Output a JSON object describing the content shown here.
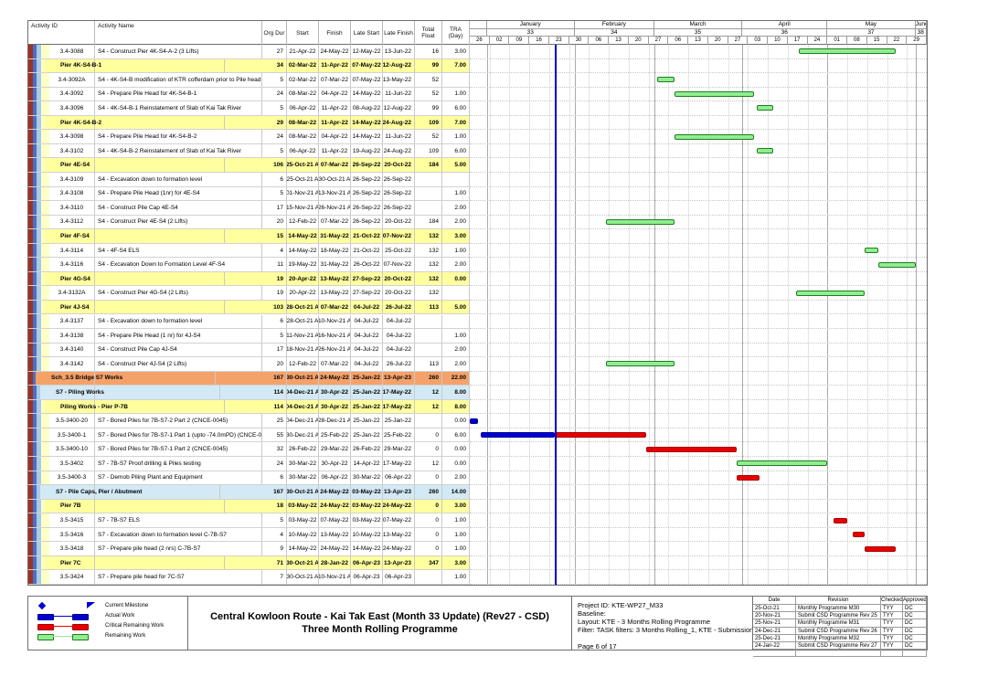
{
  "scale": {
    "start": "2021-12-26",
    "end": "2022-06-05",
    "data_date": "2022-01-25"
  },
  "timeline": {
    "months": [
      {
        "label": "",
        "num": "",
        "from": "2021-12-26",
        "to": "2022-01-01"
      },
      {
        "label": "January",
        "num": "33",
        "from": "2022-01-01",
        "to": "2022-02-01"
      },
      {
        "label": "February",
        "num": "34",
        "from": "2022-02-01",
        "to": "2022-03-01"
      },
      {
        "label": "March",
        "num": "35",
        "from": "2022-03-01",
        "to": "2022-04-01"
      },
      {
        "label": "April",
        "num": "36",
        "from": "2022-04-01",
        "to": "2022-05-01"
      },
      {
        "label": "May",
        "num": "37",
        "from": "2022-05-01",
        "to": "2022-06-01"
      },
      {
        "label": "June",
        "num": "38",
        "from": "2022-06-01",
        "to": "2022-06-05"
      }
    ],
    "weeks": [
      "26",
      "02",
      "09",
      "16",
      "23",
      "30",
      "06",
      "13",
      "20",
      "27",
      "06",
      "13",
      "20",
      "27",
      "03",
      "10",
      "17",
      "24",
      "01",
      "08",
      "15",
      "22",
      "29"
    ]
  },
  "columns": {
    "id": "Activity ID",
    "name": "Activity Name",
    "dur": "Org Dur",
    "start": "Start",
    "finish": "Finish",
    "late_start": "Late Start",
    "late_finish": "Late Finish",
    "total_float": "Total Float",
    "tra": "TRA (Day)"
  },
  "colors": {
    "band_yellow": "#FFFF9E",
    "band_orange": "#F4A26A",
    "band_blue": "#D3E9F5",
    "bar_remaining": "#90EE90",
    "bar_remaining_border": "#1E7D1E",
    "bar_critical": "#E60000",
    "bar_critical_border": "#A80000",
    "bar_actual": "#0000D0",
    "bar_actual_border": "#000090",
    "data_date_line": "#0000C0",
    "stripe_1": "#9B3324",
    "stripe_2": "#4A6FC4",
    "stripe_3": "#A9CBE8",
    "stripe_4": "#FFFFC8"
  },
  "rows": [
    {
      "type": "task",
      "id": "3.4-3088",
      "name": "S4 - Construct Pier 4K-S4-A-2 (3 Lifts)",
      "dur": "27",
      "start": "21-Apr-22",
      "finish": "24-May-22",
      "late_start": "12-May-22",
      "late_finish": "13-Jun-22",
      "total_float": "16",
      "tra": "3.00",
      "bars": [
        {
          "kind": "remaining",
          "from": "2022-04-21",
          "to": "2022-05-24"
        }
      ]
    },
    {
      "type": "band3",
      "id": "",
      "name": "Pier 4K-S4-B-1",
      "dur": "34",
      "start": "02-Mar-22",
      "finish": "11-Apr-22",
      "late_start": "07-May-22",
      "late_finish": "12-Aug-22",
      "total_float": "99",
      "tra": "7.00",
      "bars": []
    },
    {
      "type": "task",
      "id": "3.4-3092A",
      "name": "S4 - 4K-S4-B  modification of KTR cofferdam prior to Pile head trimming",
      "dur": "5",
      "start": "02-Mar-22",
      "finish": "07-Mar-22",
      "late_start": "07-May-22",
      "late_finish": "13-May-22",
      "total_float": "52",
      "tra": "",
      "bars": [
        {
          "kind": "remaining",
          "from": "2022-03-02",
          "to": "2022-03-07"
        }
      ]
    },
    {
      "type": "task",
      "id": "3.4-3092",
      "name": "S4 - Prepare Pile Head for 4K-S4-B-1",
      "dur": "24",
      "start": "08-Mar-22",
      "finish": "04-Apr-22",
      "late_start": "14-May-22",
      "late_finish": "11-Jun-22",
      "total_float": "52",
      "tra": "1.00",
      "bars": [
        {
          "kind": "remaining",
          "from": "2022-03-08",
          "to": "2022-04-04"
        }
      ]
    },
    {
      "type": "task",
      "id": "3.4-3096",
      "name": "S4 - 4K-S4-B-1 Reinstatement of Slab of Kai Tak River",
      "dur": "5",
      "start": "06-Apr-22",
      "finish": "11-Apr-22",
      "late_start": "08-Aug-22",
      "late_finish": "12-Aug-22",
      "total_float": "99",
      "tra": "6.00",
      "bars": [
        {
          "kind": "remaining",
          "from": "2022-04-06",
          "to": "2022-04-11"
        }
      ]
    },
    {
      "type": "band3",
      "id": "",
      "name": "Pier 4K-S4-B-2",
      "dur": "29",
      "start": "08-Mar-22",
      "finish": "11-Apr-22",
      "late_start": "14-May-22",
      "late_finish": "24-Aug-22",
      "total_float": "109",
      "tra": "7.00",
      "bars": []
    },
    {
      "type": "task",
      "id": "3.4-3098",
      "name": "S4 - Prepare Pile Head for 4K-S4-B-2",
      "dur": "24",
      "start": "08-Mar-22",
      "finish": "04-Apr-22",
      "late_start": "14-May-22",
      "late_finish": "11-Jun-22",
      "total_float": "52",
      "tra": "1.00",
      "bars": [
        {
          "kind": "remaining",
          "from": "2022-03-08",
          "to": "2022-04-04"
        }
      ]
    },
    {
      "type": "task",
      "id": "3.4-3102",
      "name": "S4 - 4K-S4-B-2 Reinstatement of Slab of Kai Tak River",
      "dur": "5",
      "start": "06-Apr-22",
      "finish": "11-Apr-22",
      "late_start": "19-Aug-22",
      "late_finish": "24-Aug-22",
      "total_float": "109",
      "tra": "6.00",
      "bars": [
        {
          "kind": "remaining",
          "from": "2022-04-06",
          "to": "2022-04-11"
        }
      ]
    },
    {
      "type": "band3",
      "id": "",
      "name": "Pier 4E-S4",
      "dur": "106",
      "start": "25-Oct-21 A",
      "finish": "07-Mar-22",
      "late_start": "26-Sep-22",
      "late_finish": "20-Oct-22",
      "total_float": "184",
      "tra": "5.00",
      "bars": []
    },
    {
      "type": "task",
      "id": "3.4-3109",
      "name": "S4 - Excavation down to formation level",
      "dur": "6",
      "start": "25-Oct-21 A",
      "finish": "30-Oct-21 A",
      "late_start": "26-Sep-22",
      "late_finish": "26-Sep-22",
      "total_float": "",
      "tra": "",
      "bars": []
    },
    {
      "type": "task",
      "id": "3.4-3108",
      "name": "S4 - Prepare Pile Head (1nr) for 4E-S4",
      "dur": "5",
      "start": "01-Nov-21 A",
      "finish": "13-Nov-21 A",
      "late_start": "26-Sep-22",
      "late_finish": "26-Sep-22",
      "total_float": "",
      "tra": "1.00",
      "bars": []
    },
    {
      "type": "task",
      "id": "3.4-3110",
      "name": "S4 - Construct Pile Cap 4E-S4",
      "dur": "17",
      "start": "15-Nov-21 A",
      "finish": "26-Nov-21 A",
      "late_start": "26-Sep-22",
      "late_finish": "26-Sep-22",
      "total_float": "",
      "tra": "2.00",
      "bars": []
    },
    {
      "type": "task",
      "id": "3.4-3112",
      "name": "S4 - Construct Pier 4E-S4 (2 Lifts)",
      "dur": "20",
      "start": "12-Feb-22",
      "finish": "07-Mar-22",
      "late_start": "26-Sep-22",
      "late_finish": "20-Oct-22",
      "total_float": "184",
      "tra": "2.00",
      "bars": [
        {
          "kind": "remaining",
          "from": "2022-02-12",
          "to": "2022-03-07"
        }
      ]
    },
    {
      "type": "band3",
      "id": "",
      "name": "Pier 4F-S4",
      "dur": "15",
      "start": "14-May-22",
      "finish": "31-May-22",
      "late_start": "21-Oct-22",
      "late_finish": "07-Nov-22",
      "total_float": "132",
      "tra": "3.00",
      "bars": []
    },
    {
      "type": "task",
      "id": "3.4-3114",
      "name": "S4 - 4F-S4 ELS",
      "dur": "4",
      "start": "14-May-22",
      "finish": "18-May-22",
      "late_start": "21-Oct-22",
      "late_finish": "25-Oct-22",
      "total_float": "132",
      "tra": "1.00",
      "bars": [
        {
          "kind": "remaining",
          "from": "2022-05-14",
          "to": "2022-05-18"
        }
      ]
    },
    {
      "type": "task",
      "id": "3.4-3116",
      "name": "S4 - Excavation Down to Formation Level 4F-S4",
      "dur": "11",
      "start": "19-May-22",
      "finish": "31-May-22",
      "late_start": "26-Oct-22",
      "late_finish": "07-Nov-22",
      "total_float": "132",
      "tra": "2.00",
      "bars": [
        {
          "kind": "remaining",
          "from": "2022-05-19",
          "to": "2022-05-31"
        }
      ]
    },
    {
      "type": "band3",
      "id": "",
      "name": "Pier 4G-S4",
      "dur": "19",
      "start": "20-Apr-22",
      "finish": "13-May-22",
      "late_start": "27-Sep-22",
      "late_finish": "20-Oct-22",
      "total_float": "132",
      "tra": "0.00",
      "bars": []
    },
    {
      "type": "task",
      "id": "3.4-3132A",
      "name": "S4 - Construct Pier 4G-S4 (2 Lifts)",
      "dur": "19",
      "start": "20-Apr-22",
      "finish": "13-May-22",
      "late_start": "27-Sep-22",
      "late_finish": "20-Oct-22",
      "total_float": "132",
      "tra": "",
      "bars": [
        {
          "kind": "remaining",
          "from": "2022-04-20",
          "to": "2022-05-13"
        }
      ]
    },
    {
      "type": "band3",
      "id": "",
      "name": "Pier 4J-S4",
      "dur": "103",
      "start": "28-Oct-21 A",
      "finish": "07-Mar-22",
      "late_start": "04-Jul-22",
      "late_finish": "26-Jul-22",
      "total_float": "113",
      "tra": "5.00",
      "bars": []
    },
    {
      "type": "task",
      "id": "3.4-3137",
      "name": "S4 - Excavation down to formation level",
      "dur": "6",
      "start": "28-Oct-21 A",
      "finish": "10-Nov-21 A",
      "late_start": "04-Jul-22",
      "late_finish": "04-Jul-22",
      "total_float": "",
      "tra": "",
      "bars": []
    },
    {
      "type": "task",
      "id": "3.4-3138",
      "name": "S4 - Prepare Pile Head (1 nr) for 4J-S4",
      "dur": "5",
      "start": "11-Nov-21 A",
      "finish": "16-Nov-21 A",
      "late_start": "04-Jul-22",
      "late_finish": "04-Jul-22",
      "total_float": "",
      "tra": "1.00",
      "bars": []
    },
    {
      "type": "task",
      "id": "3.4-3140",
      "name": "S4 - Construct Pile Cap 4J-S4",
      "dur": "17",
      "start": "18-Nov-21 A",
      "finish": "26-Nov-21 A",
      "late_start": "04-Jul-22",
      "late_finish": "04-Jul-22",
      "total_float": "",
      "tra": "2.00",
      "bars": []
    },
    {
      "type": "task",
      "id": "3.4-3142",
      "name": "S4 - Construct Pier 4J-S4 (2 Lifts)",
      "dur": "20",
      "start": "12-Feb-22",
      "finish": "07-Mar-22",
      "late_start": "04-Jul-22",
      "late_finish": "26-Jul-22",
      "total_float": "113",
      "tra": "2.00",
      "bars": [
        {
          "kind": "remaining",
          "from": "2022-02-12",
          "to": "2022-03-07"
        }
      ]
    },
    {
      "type": "band1",
      "id": "",
      "name": "Sch_3.5 Bridge S7 Works",
      "dur": "167",
      "start": "30-Oct-21 A",
      "finish": "24-May-22",
      "late_start": "25-Jan-22",
      "late_finish": "13-Apr-23",
      "total_float": "260",
      "tra": "22.00",
      "bars": []
    },
    {
      "type": "band2",
      "id": "",
      "name": "S7 - Piling Works",
      "dur": "114",
      "start": "04-Dec-21 A",
      "finish": "30-Apr-22",
      "late_start": "25-Jan-22",
      "late_finish": "17-May-22",
      "total_float": "12",
      "tra": "8.00",
      "bars": []
    },
    {
      "type": "band3",
      "id": "",
      "name": "Piling Works - Pier P-7B",
      "dur": "114",
      "start": "04-Dec-21 A",
      "finish": "30-Apr-22",
      "late_start": "25-Jan-22",
      "late_finish": "17-May-22",
      "total_float": "12",
      "tra": "8.00",
      "bars": []
    },
    {
      "type": "task",
      "id": "3.5-3400-20",
      "name": "S7 - Bored Piles for 7B-S7-2 Part 2 (CNCE-0045)",
      "dur": "25",
      "start": "04-Dec-21 A",
      "finish": "28-Dec-21 A",
      "late_start": "25-Jan-22",
      "late_finish": "25-Jan-22",
      "total_float": "",
      "tra": "0.00",
      "bars": [
        {
          "kind": "actual",
          "from": "2021-12-26",
          "to": "2021-12-28"
        }
      ]
    },
    {
      "type": "task",
      "id": "3.5-3400-1",
      "name": "S7 - Bored Piles for 7B-S7-1 Part 1 (upto -74.0mPD) (CNCE-0045)",
      "dur": "55",
      "start": "30-Dec-21 A",
      "finish": "25-Feb-22",
      "late_start": "25-Jan-22",
      "late_finish": "25-Feb-22",
      "total_float": "0",
      "tra": "6.00",
      "bars": [
        {
          "kind": "actual",
          "from": "2021-12-30",
          "to": "2022-01-24"
        },
        {
          "kind": "critical",
          "from": "2022-01-25",
          "to": "2022-02-25"
        }
      ]
    },
    {
      "type": "task",
      "id": "3.5-3400-10",
      "name": "S7 - Bored Piles for 7B-S7-1 Part 2 (CNCE-0045)",
      "dur": "32",
      "start": "26-Feb-22",
      "finish": "29-Mar-22",
      "late_start": "26-Feb-22",
      "late_finish": "29-Mar-22",
      "total_float": "0",
      "tra": "0.00",
      "bars": [
        {
          "kind": "critical",
          "from": "2022-02-26",
          "to": "2022-03-29"
        }
      ]
    },
    {
      "type": "task",
      "id": "3.5-3402",
      "name": "S7 - 7B-S7 Proof drilling & Piles testing",
      "dur": "24",
      "start": "30-Mar-22",
      "finish": "30-Apr-22",
      "late_start": "14-Apr-22",
      "late_finish": "17-May-22",
      "total_float": "12",
      "tra": "0.00",
      "bars": [
        {
          "kind": "remaining",
          "from": "2022-03-30",
          "to": "2022-04-30"
        }
      ]
    },
    {
      "type": "task",
      "id": "3.5-3400-3",
      "name": "S7 - Demob Piling Plant and Equipment",
      "dur": "6",
      "start": "30-Mar-22",
      "finish": "06-Apr-22",
      "late_start": "30-Mar-22",
      "late_finish": "06-Apr-22",
      "total_float": "0",
      "tra": "2.00",
      "bars": [
        {
          "kind": "critical",
          "from": "2022-03-30",
          "to": "2022-04-06"
        }
      ]
    },
    {
      "type": "band2",
      "id": "",
      "name": "S7 - Pile Caps, Pier / Abutment",
      "dur": "167",
      "start": "30-Oct-21 A",
      "finish": "24-May-22",
      "late_start": "03-May-22",
      "late_finish": "13-Apr-23",
      "total_float": "260",
      "tra": "14.00",
      "bars": []
    },
    {
      "type": "band3",
      "id": "",
      "name": "Pier 7B",
      "dur": "18",
      "start": "03-May-22",
      "finish": "24-May-22",
      "late_start": "03-May-22",
      "late_finish": "24-May-22",
      "total_float": "0",
      "tra": "3.00",
      "bars": []
    },
    {
      "type": "task",
      "id": "3.5-3415",
      "name": "S7 - 7B-S7 ELS",
      "dur": "5",
      "start": "03-May-22",
      "finish": "07-May-22",
      "late_start": "03-May-22",
      "late_finish": "07-May-22",
      "total_float": "0",
      "tra": "1.00",
      "bars": [
        {
          "kind": "critical",
          "from": "2022-05-03",
          "to": "2022-05-07"
        }
      ]
    },
    {
      "type": "task",
      "id": "3.5-3416",
      "name": "S7 - Excavation down to formation level C-7B-S7",
      "dur": "4",
      "start": "10-May-22",
      "finish": "13-May-22",
      "late_start": "10-May-22",
      "late_finish": "13-May-22",
      "total_float": "0",
      "tra": "1.00",
      "bars": [
        {
          "kind": "critical",
          "from": "2022-05-10",
          "to": "2022-05-13"
        }
      ]
    },
    {
      "type": "task",
      "id": "3.5-3418",
      "name": "S7 - Prepare pile head (2 nrs) C-7B-S7",
      "dur": "9",
      "start": "14-May-22",
      "finish": "24-May-22",
      "late_start": "14-May-22",
      "late_finish": "24-May-22",
      "total_float": "0",
      "tra": "1.00",
      "bars": [
        {
          "kind": "critical",
          "from": "2022-05-14",
          "to": "2022-05-24"
        }
      ]
    },
    {
      "type": "band3",
      "id": "",
      "name": "Pier 7C",
      "dur": "71",
      "start": "30-Oct-21 A",
      "finish": "28-Jan-22",
      "late_start": "06-Apr-23",
      "late_finish": "13-Apr-23",
      "total_float": "347",
      "tra": "3.00",
      "bars": []
    },
    {
      "type": "task",
      "id": "3.5-3424",
      "name": "S7 - Prepare pile head for 7C-S7",
      "dur": "7",
      "start": "30-Oct-21 A",
      "finish": "10-Nov-21 A",
      "late_start": "06-Apr-23",
      "late_finish": "06-Apr-23",
      "total_float": "",
      "tra": "1.00",
      "bars": []
    }
  ],
  "legend": [
    {
      "kind": "milestone",
      "label": "Current Milestone"
    },
    {
      "kind": "actual",
      "label": "Actual Work"
    },
    {
      "kind": "critical",
      "label": "Critical Remaining Work"
    },
    {
      "kind": "remaining",
      "label": "Remaining Work"
    }
  ],
  "title": {
    "line1": "Central Kowloon Route - Kai Tak East (Month 33 Update) (Rev27 - CSD)",
    "line2": "Three Month Rolling Programme"
  },
  "info": {
    "lines": [
      "Project ID: KTE-WP27_M33",
      "Baseline:",
      "Layout: KTE - 3 Months Rolling Programme",
      "Filter: TASK filters: 3 Months Rolling_1, KTE - Submission.",
      "",
      "Page 6 of 17"
    ]
  },
  "revisions": {
    "headers": [
      "Date",
      "Revision",
      "Checked",
      "Approved"
    ],
    "rows": [
      [
        "25-Oct-21",
        "Monthly Programme M30",
        "TYY",
        "DC"
      ],
      [
        "20-Nov-21",
        "Submit CSD Programme Rev 25",
        "TYY",
        "DC"
      ],
      [
        "25-Nov-21",
        "Monthly Programme M31",
        "TYY",
        "DC"
      ],
      [
        "24-Dec-21",
        "Submit CSD Programme Rev 26",
        "TYY",
        "DC"
      ],
      [
        "25-Dec-21",
        "Monthly Programme M32",
        "TYY",
        "DC"
      ],
      [
        "24-Jan-22",
        "Submit CSD Programme Rev 27",
        "TYY",
        "DC"
      ],
      [
        "",
        "",
        "",
        ""
      ]
    ]
  }
}
